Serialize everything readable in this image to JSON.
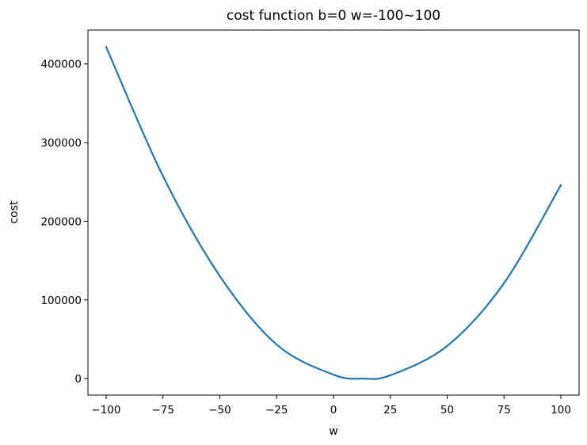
{
  "chart_data": {
    "type": "line",
    "title": "cost function b=0 w=-100~100",
    "xlabel": "w",
    "ylabel": "cost",
    "xlim": [
      -108,
      108
    ],
    "ylim": [
      -21000,
      443000
    ],
    "x_ticks": [
      -100,
      -75,
      -50,
      -25,
      0,
      25,
      50,
      75,
      100
    ],
    "x_tick_labels": [
      "−100",
      "−75",
      "−50",
      "−25",
      "0",
      "25",
      "50",
      "75",
      "100"
    ],
    "y_ticks": [
      0,
      100000,
      200000,
      300000,
      400000
    ],
    "y_tick_labels": [
      "0",
      "100000",
      "200000",
      "300000",
      "400000"
    ],
    "grid": false,
    "series": [
      {
        "color": "#1f77b4",
        "x": [
          -100,
          -75,
          -50,
          -25,
          0,
          13,
          25,
          50,
          75,
          100
        ],
        "y": [
          421700,
          257400,
          130400,
          43200,
          5000,
          0,
          4200,
          41500,
          121400,
          246000
        ]
      }
    ]
  }
}
